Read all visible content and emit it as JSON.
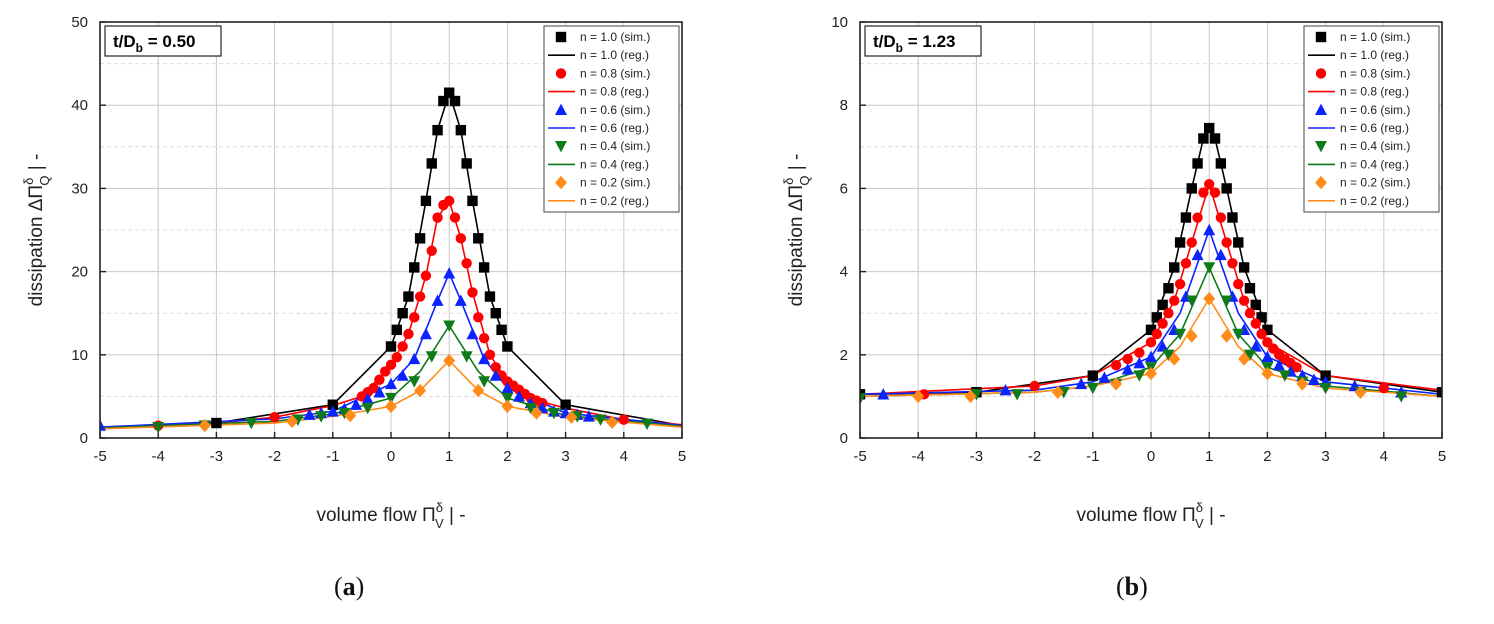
{
  "colors": {
    "n1.0": "#000000",
    "n0.8": "#ff0000",
    "n0.6": "#0a23ff",
    "n0.4": "#0f7a1a",
    "n0.2": "#ff8c1a",
    "grid": "#c8c8c8",
    "grid_minor": "#dcdcdc"
  },
  "captions": [
    {
      "open": "(",
      "letter": "a",
      "close": ")"
    },
    {
      "open": "(",
      "letter": "b",
      "close": ")"
    }
  ],
  "chart_data": [
    {
      "type": "line",
      "annotation": {
        "main": "t/D",
        "sub": "b",
        "value": " = 0.50"
      },
      "xlabel": {
        "text": "volume flow Π",
        "sup": "δ",
        "sub": "V",
        "unit": "  |  -"
      },
      "ylabel": {
        "text": "dissipation ΔΠ",
        "sup": "δ",
        "sub": "Q",
        "unit": "  |  -"
      },
      "xlim": [
        -5,
        5
      ],
      "ylim": [
        0,
        50
      ],
      "xticks": [
        -5,
        -4,
        -3,
        -2,
        -1,
        0,
        1,
        2,
        3,
        4,
        5
      ],
      "yticks": [
        0,
        10,
        20,
        30,
        40,
        50
      ],
      "legend_position": "top-right",
      "legend": [
        "n = 1.0 (sim.)",
        "n = 1.0 (reg.)",
        "n = 0.8 (sim.)",
        "n = 0.8 (reg.)",
        "n = 0.6 (sim.)",
        "n = 0.6 (reg.)",
        "n = 0.4 (sim.)",
        "n = 0.4 (reg.)",
        "n = 0.2 (sim.)",
        "n = 0.2 (reg.)"
      ],
      "series": [
        {
          "name": "n = 1.0",
          "color_key": "n1.0",
          "marker": "square",
          "sim": {
            "x": [
              -3,
              -1,
              0,
              0.1,
              0.2,
              0.3,
              0.4,
              0.5,
              0.6,
              0.7,
              0.8,
              0.9,
              1.0,
              1.1,
              1.2,
              1.3,
              1.4,
              1.5,
              1.6,
              1.7,
              1.8,
              1.9,
              2.0,
              3.0
            ],
            "y": [
              1.8,
              4.0,
              11.0,
              13.0,
              15.0,
              17.0,
              20.5,
              24.0,
              28.5,
              33.0,
              37.0,
              40.5,
              41.5,
              40.5,
              37.0,
              33.0,
              28.5,
              24.0,
              20.5,
              17.0,
              15.0,
              13.0,
              11.0,
              4.0
            ]
          },
          "reg": {
            "x": [
              -5,
              -3,
              -1,
              0,
              0.3,
              0.6,
              0.8,
              1.0,
              1.2,
              1.4,
              1.7,
              2.0,
              3.0,
              5.0
            ],
            "y": [
              1.3,
              1.8,
              4.0,
              11.0,
              17.0,
              28.5,
              37.0,
              41.5,
              37.0,
              28.5,
              17.0,
              11.0,
              4.0,
              1.5
            ]
          }
        },
        {
          "name": "n = 0.8",
          "color_key": "n0.8",
          "marker": "circle",
          "sim": {
            "x": [
              -4,
              -2,
              -0.5,
              -0.4,
              -0.3,
              -0.2,
              -0.1,
              0,
              0.1,
              0.2,
              0.3,
              0.4,
              0.5,
              0.6,
              0.7,
              0.8,
              0.9,
              1.0,
              1.1,
              1.2,
              1.3,
              1.4,
              1.5,
              1.6,
              1.7,
              1.8,
              1.9,
              2.0,
              2.1,
              2.2,
              2.3,
              2.4,
              2.5,
              2.6,
              4.0
            ],
            "y": [
              1.5,
              2.5,
              5.0,
              5.5,
              6.0,
              7.0,
              8.0,
              8.8,
              9.7,
              11.0,
              12.5,
              14.5,
              17.0,
              19.5,
              22.5,
              26.5,
              28.0,
              28.5,
              26.5,
              24.0,
              21.0,
              17.5,
              14.5,
              12.0,
              10.0,
              8.5,
              7.5,
              6.8,
              6.3,
              5.8,
              5.3,
              4.8,
              4.5,
              4.2,
              2.2
            ]
          },
          "reg": {
            "x": [
              -5,
              -3,
              -2,
              -1,
              -0.5,
              0,
              0.3,
              0.6,
              0.8,
              1.0,
              1.2,
              1.4,
              1.7,
              2.0,
              2.5,
              3.0,
              4.0,
              5.0
            ],
            "y": [
              1.2,
              1.8,
              2.5,
              3.9,
              5.0,
              8.8,
              12.5,
              19.5,
              26.5,
              28.5,
              24.0,
              17.5,
              10.0,
              6.8,
              4.5,
              3.6,
              2.2,
              1.6
            ]
          }
        },
        {
          "name": "n = 0.6",
          "color_key": "n0.6",
          "marker": "triangle-up",
          "sim": {
            "x": [
              -5,
              -1.4,
              -1.2,
              -1.0,
              -0.8,
              -0.6,
              -0.4,
              -0.2,
              0,
              0.2,
              0.4,
              0.6,
              0.8,
              1.0,
              1.2,
              1.4,
              1.6,
              1.8,
              2.0,
              2.2,
              2.4,
              2.6,
              2.8,
              3.0,
              3.2,
              3.4
            ],
            "y": [
              1.5,
              2.8,
              3.0,
              3.2,
              3.5,
              4.0,
              4.7,
              5.5,
              6.5,
              7.5,
              9.5,
              12.5,
              16.5,
              19.8,
              16.5,
              12.5,
              9.5,
              7.5,
              6.0,
              5.0,
              4.2,
              3.6,
              3.2,
              3.0,
              2.8,
              2.6
            ]
          },
          "reg": {
            "x": [
              -5,
              -2,
              -1,
              0,
              0.4,
              0.8,
              1.0,
              1.2,
              1.6,
              2.0,
              3.0,
              5.0
            ],
            "y": [
              1.3,
              2.3,
              3.2,
              6.5,
              9.5,
              16.5,
              19.8,
              16.5,
              9.5,
              6.0,
              3.0,
              1.5
            ]
          }
        },
        {
          "name": "n = 0.4",
          "color_key": "n0.4",
          "marker": "triangle-down",
          "sim": {
            "x": [
              -4,
              -3.2,
              -2.4,
              -1.6,
              -1.2,
              -0.8,
              -0.4,
              0,
              0.4,
              0.7,
              1.0,
              1.3,
              1.6,
              2.0,
              2.4,
              2.8,
              3.2,
              3.6,
              4.4
            ],
            "y": [
              1.3,
              1.5,
              1.8,
              2.2,
              2.6,
              3.0,
              3.6,
              4.8,
              6.8,
              9.8,
              13.5,
              9.8,
              6.8,
              4.8,
              3.6,
              3.0,
              2.6,
              2.2,
              1.7
            ]
          },
          "reg": {
            "x": [
              -5,
              -2,
              -1,
              0,
              0.5,
              1.0,
              1.5,
              2.0,
              3.0,
              5.0
            ],
            "y": [
              1.2,
              2.0,
              2.9,
              4.8,
              8.0,
              13.5,
              8.0,
              4.8,
              2.7,
              1.4
            ]
          }
        },
        {
          "name": "n = 0.2",
          "color_key": "n0.2",
          "marker": "diamond",
          "sim": {
            "x": [
              -3.2,
              -1.7,
              -0.7,
              0,
              0.5,
              1.0,
              1.5,
              2.0,
              2.5,
              3.1,
              3.8
            ],
            "y": [
              1.5,
              2.0,
              2.7,
              3.8,
              5.7,
              9.3,
              5.7,
              3.8,
              3.0,
              2.5,
              1.9
            ]
          },
          "reg": {
            "x": [
              -5,
              -2,
              -1,
              0,
              0.5,
              1.0,
              1.5,
              2.0,
              3.0,
              5.0
            ],
            "y": [
              1.1,
              1.8,
              2.6,
              3.8,
              5.7,
              9.3,
              5.7,
              3.8,
              2.5,
              1.3
            ]
          }
        }
      ]
    },
    {
      "type": "line",
      "annotation": {
        "main": "t/D",
        "sub": "b",
        "value": " = 1.23"
      },
      "xlabel": {
        "text": "volume flow Π",
        "sup": "δ",
        "sub": "V",
        "unit": "  |  -"
      },
      "ylabel": {
        "text": "dissipation ΔΠ",
        "sup": "δ",
        "sub": "Q",
        "unit": "  |  -"
      },
      "xlim": [
        -5,
        5
      ],
      "ylim": [
        0,
        10
      ],
      "xticks": [
        -5,
        -4,
        -3,
        -2,
        -1,
        0,
        1,
        2,
        3,
        4,
        5
      ],
      "yticks": [
        0,
        2,
        4,
        6,
        8,
        10
      ],
      "legend_position": "top-right",
      "legend": [
        "n = 1.0 (sim.)",
        "n = 1.0 (reg.)",
        "n = 0.8 (sim.)",
        "n = 0.8 (reg.)",
        "n = 0.6 (sim.)",
        "n = 0.6 (reg.)",
        "n = 0.4 (sim.)",
        "n = 0.4 (reg.)",
        "n = 0.2 (sim.)",
        "n = 0.2 (reg.)"
      ],
      "series": [
        {
          "name": "n = 1.0",
          "color_key": "n1.0",
          "marker": "square",
          "sim": {
            "x": [
              -5,
              -3,
              -1,
              0,
              0.1,
              0.2,
              0.3,
              0.4,
              0.5,
              0.6,
              0.7,
              0.8,
              0.9,
              1.0,
              1.1,
              1.2,
              1.3,
              1.4,
              1.5,
              1.6,
              1.7,
              1.8,
              1.9,
              2.0,
              3.0,
              5.0
            ],
            "y": [
              1.05,
              1.1,
              1.5,
              2.6,
              2.9,
              3.2,
              3.6,
              4.1,
              4.7,
              5.3,
              6.0,
              6.6,
              7.2,
              7.45,
              7.2,
              6.6,
              6.0,
              5.3,
              4.7,
              4.1,
              3.6,
              3.2,
              2.9,
              2.6,
              1.5,
              1.1
            ]
          },
          "reg": {
            "x": [
              -5,
              -3,
              -1,
              0,
              0.4,
              0.7,
              0.9,
              1.0,
              1.1,
              1.3,
              1.6,
              2.0,
              3.0,
              5.0
            ],
            "y": [
              1.05,
              1.1,
              1.5,
              2.6,
              4.1,
              6.0,
              7.2,
              7.45,
              7.2,
              6.0,
              4.1,
              2.6,
              1.5,
              1.1
            ]
          }
        },
        {
          "name": "n = 0.8",
          "color_key": "n0.8",
          "marker": "circle",
          "sim": {
            "x": [
              -3.9,
              -2,
              -0.6,
              -0.4,
              -0.2,
              0,
              0.1,
              0.2,
              0.3,
              0.4,
              0.5,
              0.6,
              0.7,
              0.8,
              0.9,
              1.0,
              1.1,
              1.2,
              1.3,
              1.4,
              1.5,
              1.6,
              1.7,
              1.8,
              1.9,
              2.0,
              2.1,
              2.2,
              2.3,
              2.4,
              2.5,
              4.0
            ],
            "y": [
              1.05,
              1.25,
              1.75,
              1.9,
              2.05,
              2.3,
              2.5,
              2.75,
              3.0,
              3.3,
              3.7,
              4.2,
              4.7,
              5.3,
              5.9,
              6.1,
              5.9,
              5.3,
              4.7,
              4.2,
              3.7,
              3.3,
              3.0,
              2.75,
              2.5,
              2.3,
              2.15,
              2.0,
              1.9,
              1.8,
              1.7,
              1.2
            ]
          },
          "reg": {
            "x": [
              -5,
              -2,
              -1,
              0,
              0.4,
              0.7,
              1.0,
              1.3,
              1.6,
              2.0,
              3.0,
              5.0
            ],
            "y": [
              1.05,
              1.25,
              1.5,
              2.3,
              3.3,
              4.7,
              6.1,
              4.7,
              3.3,
              2.3,
              1.5,
              1.15
            ]
          }
        },
        {
          "name": "n = 0.6",
          "color_key": "n0.6",
          "marker": "triangle-up",
          "sim": {
            "x": [
              -4.6,
              -2.5,
              -1.2,
              -0.8,
              -0.4,
              -0.2,
              0,
              0.2,
              0.4,
              0.6,
              0.8,
              1.0,
              1.2,
              1.4,
              1.6,
              1.8,
              2.0,
              2.2,
              2.4,
              2.6,
              2.8,
              3.0,
              3.5,
              4.3
            ],
            "y": [
              1.05,
              1.15,
              1.3,
              1.45,
              1.65,
              1.8,
              1.95,
              2.2,
              2.6,
              3.4,
              4.4,
              5.0,
              4.4,
              3.4,
              2.6,
              2.2,
              1.95,
              1.75,
              1.6,
              1.5,
              1.4,
              1.35,
              1.25,
              1.1
            ]
          },
          "reg": {
            "x": [
              -5,
              -2,
              -1,
              0,
              0.5,
              1.0,
              1.5,
              2.0,
              3.0,
              5.0
            ],
            "y": [
              1.05,
              1.15,
              1.35,
              1.95,
              3.0,
              5.0,
              3.0,
              1.95,
              1.35,
              1.05
            ]
          }
        },
        {
          "name": "n = 0.4",
          "color_key": "n0.4",
          "marker": "triangle-down",
          "sim": {
            "x": [
              -5,
              -3,
              -2.3,
              -1.5,
              -1,
              -0.6,
              -0.2,
              0,
              0.3,
              0.5,
              0.7,
              1.0,
              1.3,
              1.5,
              1.7,
              2.0,
              2.3,
              2.6,
              3.0,
              3.6,
              4.3
            ],
            "y": [
              0.95,
              1.05,
              1.05,
              1.1,
              1.2,
              1.3,
              1.5,
              1.7,
              2.0,
              2.5,
              3.3,
              4.1,
              3.3,
              2.5,
              2.0,
              1.7,
              1.5,
              1.35,
              1.2,
              1.1,
              1.0
            ]
          },
          "reg": {
            "x": [
              -5,
              -2,
              -1,
              0,
              0.5,
              1.0,
              1.5,
              2.0,
              3.0,
              5.0
            ],
            "y": [
              1.0,
              1.1,
              1.25,
              1.7,
              2.5,
              4.1,
              2.5,
              1.7,
              1.25,
              1.0
            ]
          }
        },
        {
          "name": "n = 0.2",
          "color_key": "n0.2",
          "marker": "diamond",
          "sim": {
            "x": [
              -4,
              -3.1,
              -1.6,
              -0.6,
              0,
              0.4,
              0.7,
              1.0,
              1.3,
              1.6,
              2.0,
              2.6,
              3.6
            ],
            "y": [
              1.0,
              1.0,
              1.1,
              1.3,
              1.55,
              1.9,
              2.45,
              3.35,
              2.45,
              1.9,
              1.55,
              1.3,
              1.1
            ]
          },
          "reg": {
            "x": [
              -5,
              -2,
              -1,
              0,
              0.5,
              1.0,
              1.5,
              2.0,
              3.0,
              5.0
            ],
            "y": [
              1.0,
              1.1,
              1.25,
              1.55,
              2.2,
              3.35,
              2.2,
              1.55,
              1.2,
              1.0
            ]
          }
        }
      ]
    }
  ]
}
